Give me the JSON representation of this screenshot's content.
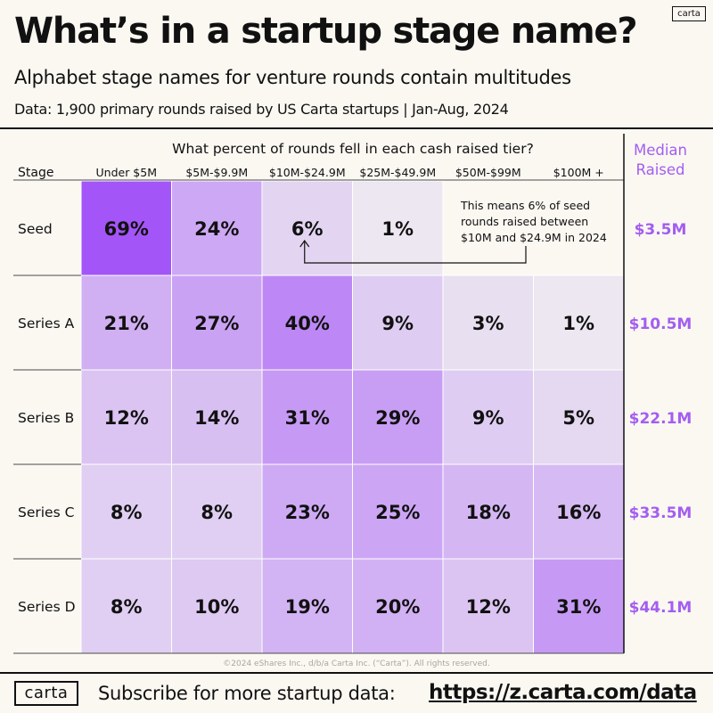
{
  "brand": {
    "logo_text": "carta"
  },
  "header": {
    "title": "What’s in a startup stage name?",
    "subtitle": "Alphabet stage names for venture rounds contain multitudes",
    "source": "Data: 1,900 primary rounds raised by US Carta startups | Jan-Aug, 2024"
  },
  "chart_data": {
    "type": "heatmap",
    "title": "What percent of rounds fell in each cash raised tier?",
    "row_header": "Stage",
    "columns": [
      "Under $5M",
      "$5M-$9.9M",
      "$10M-$24.9M",
      "$25M-$49.9M",
      "$50M-$99M",
      "$100M +"
    ],
    "rows": [
      "Seed",
      "Series A",
      "Series B",
      "Series C",
      "Series D"
    ],
    "values": [
      [
        69,
        24,
        6,
        1,
        null,
        null
      ],
      [
        21,
        27,
        40,
        9,
        3,
        1
      ],
      [
        12,
        14,
        31,
        29,
        9,
        5
      ],
      [
        8,
        8,
        23,
        25,
        18,
        16
      ],
      [
        8,
        10,
        19,
        20,
        12,
        31
      ]
    ],
    "value_labels": [
      [
        "69%",
        "24%",
        "6%",
        "1%",
        "",
        ""
      ],
      [
        "21%",
        "27%",
        "40%",
        "9%",
        "3%",
        "1%"
      ],
      [
        "12%",
        "14%",
        "31%",
        "29%",
        "9%",
        "5%"
      ],
      [
        "8%",
        "8%",
        "23%",
        "25%",
        "18%",
        "16%"
      ],
      [
        "8%",
        "10%",
        "19%",
        "20%",
        "12%",
        "31%"
      ]
    ],
    "median_header": [
      "Median",
      "Raised"
    ],
    "median_raised": [
      "$3.5M",
      "$10.5M",
      "$22.1M",
      "$33.5M",
      "$44.1M"
    ],
    "annotation": {
      "lines": [
        "This means 6% of seed",
        "rounds raised between",
        "$10M and $24.9M in 2024"
      ],
      "row": "Seed",
      "column": "$10M-$24.9M"
    },
    "colors": {
      "low": "#efedf0",
      "high": "#a455f8",
      "median_text": "#a35ef0"
    }
  },
  "footer": {
    "copyright": "©2024 eShares Inc., d/b/a Carta Inc. (“Carta”). All rights reserved.",
    "subscribe_text": "Subscribe for more startup data:",
    "subscribe_url": "https://z.carta.com/data"
  }
}
